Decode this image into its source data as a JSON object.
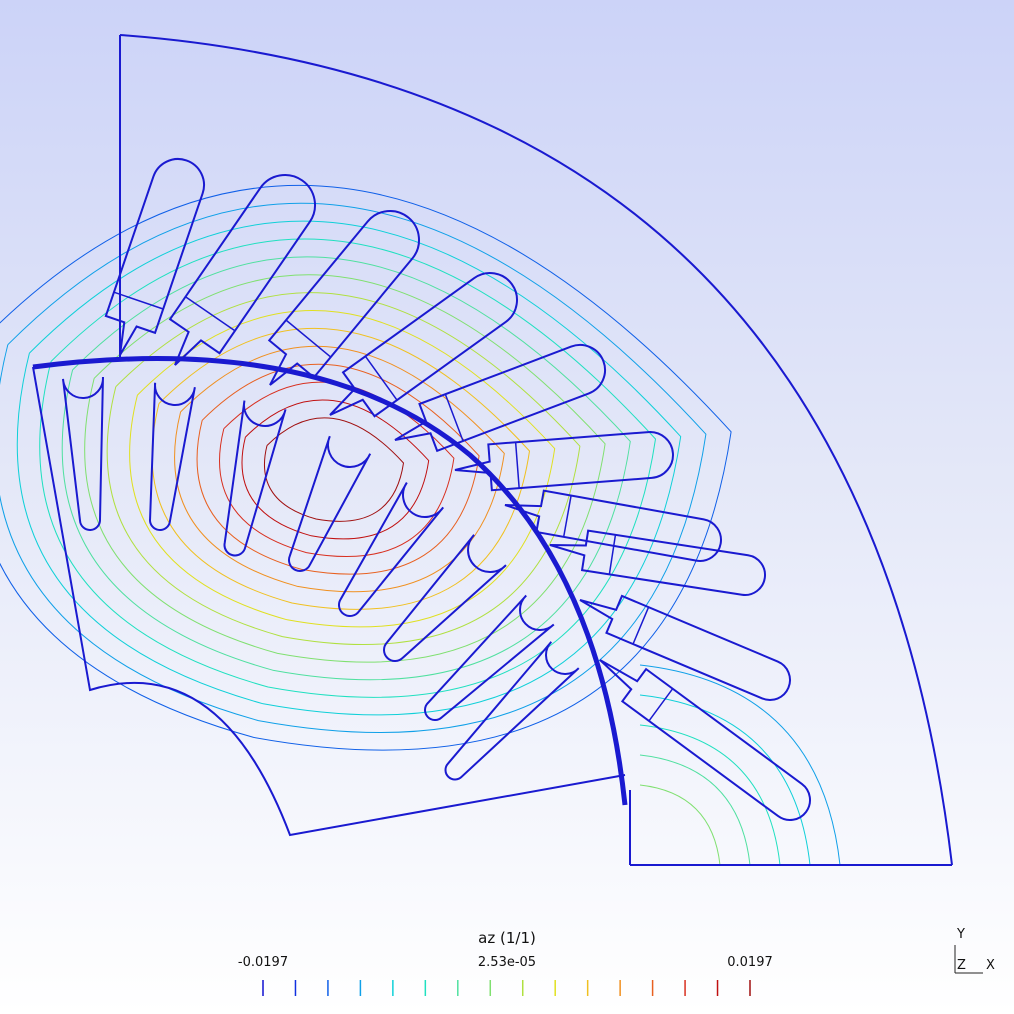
{
  "legend": {
    "title": "az (1/1)",
    "min_label": "-0.0197",
    "mid_label": "2.53e-05",
    "max_label": "0.0197",
    "color_ramp": [
      "#1010d0",
      "#1030e0",
      "#1060e8",
      "#10a0e8",
      "#10d0d8",
      "#20e0c0",
      "#50e0a0",
      "#80e070",
      "#b0e040",
      "#e0e020",
      "#f0c020",
      "#f09020",
      "#e86020",
      "#d83020",
      "#c01010",
      "#a01010"
    ]
  },
  "axes": {
    "y": "Y",
    "z": "Z",
    "x": "X"
  },
  "colors": {
    "geometry": "#1a1ad0",
    "background_top": "#ccd3f8",
    "background_bottom": "#ffffff"
  }
}
